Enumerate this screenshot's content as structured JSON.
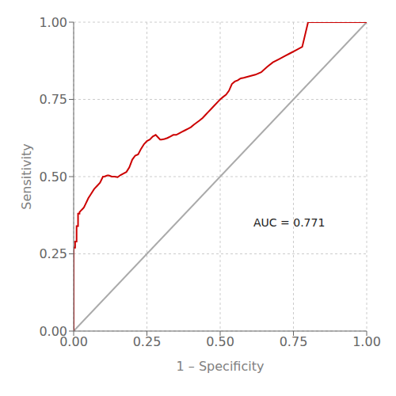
{
  "chart_data": {
    "type": "line",
    "title": "",
    "xlabel": "1 – Specificity",
    "ylabel": "Sensitivity",
    "grid": true,
    "xlim": [
      0.0,
      1.0
    ],
    "ylim": [
      0.0,
      1.0
    ],
    "xticks": [
      {
        "value": 0.0,
        "label": "0.00"
      },
      0.25,
      {
        "value": 0.5,
        "label": "0.50"
      },
      0.75,
      {
        "value": 1.0,
        "label": "1.00"
      }
    ],
    "yticks": [
      {
        "value": 0.0,
        "label": "0.00"
      },
      0.25,
      {
        "value": 0.5,
        "label": "0.50"
      },
      0.75,
      {
        "value": 1.0,
        "label": "1.00"
      }
    ],
    "series": [
      {
        "color": "#aaaaaa",
        "x": [
          0,
          1
        ],
        "values": [
          0,
          1
        ]
      },
      {
        "color": "#cc0000",
        "x": [
          0.0,
          0.0,
          0.005,
          0.005,
          0.01,
          0.01,
          0.015,
          0.015,
          0.02,
          0.02,
          0.025,
          0.03,
          0.035,
          0.04,
          0.045,
          0.05,
          0.06,
          0.07,
          0.08,
          0.09,
          0.1,
          0.105,
          0.11,
          0.115,
          0.12,
          0.125,
          0.13,
          0.14,
          0.15,
          0.16,
          0.17,
          0.18,
          0.19,
          0.2,
          0.21,
          0.22,
          0.23,
          0.24,
          0.25,
          0.26,
          0.27,
          0.28,
          0.285,
          0.29,
          0.295,
          0.3,
          0.31,
          0.32,
          0.33,
          0.34,
          0.35,
          0.36,
          0.37,
          0.38,
          0.39,
          0.4,
          0.41,
          0.42,
          0.43,
          0.44,
          0.45,
          0.46,
          0.47,
          0.48,
          0.49,
          0.5,
          0.51,
          0.52,
          0.53,
          0.54,
          0.55,
          0.56,
          0.57,
          0.58,
          0.6,
          0.62,
          0.64,
          0.66,
          0.68,
          0.7,
          0.72,
          0.74,
          0.76,
          0.78,
          0.8,
          0.82,
          0.84,
          0.86,
          0.88,
          0.9,
          0.92,
          0.94,
          0.96,
          0.98,
          1.0
        ],
        "values": [
          0.0,
          0.27,
          0.27,
          0.29,
          0.29,
          0.34,
          0.34,
          0.38,
          0.38,
          0.385,
          0.39,
          0.395,
          0.4,
          0.41,
          0.42,
          0.43,
          0.445,
          0.46,
          0.47,
          0.48,
          0.5,
          0.5,
          0.502,
          0.504,
          0.504,
          0.502,
          0.5,
          0.5,
          0.498,
          0.505,
          0.51,
          0.515,
          0.53,
          0.555,
          0.568,
          0.572,
          0.59,
          0.605,
          0.615,
          0.62,
          0.63,
          0.635,
          0.63,
          0.625,
          0.62,
          0.62,
          0.622,
          0.625,
          0.63,
          0.635,
          0.635,
          0.64,
          0.645,
          0.65,
          0.655,
          0.66,
          0.668,
          0.675,
          0.682,
          0.69,
          0.7,
          0.71,
          0.72,
          0.73,
          0.74,
          0.75,
          0.758,
          0.765,
          0.778,
          0.8,
          0.808,
          0.812,
          0.818,
          0.82,
          0.825,
          0.83,
          0.838,
          0.855,
          0.87,
          0.88,
          0.89,
          0.9,
          0.91,
          0.92,
          1.0,
          1.0,
          1.0,
          1.0,
          1.0,
          1.0,
          1.0,
          1.0,
          1.0,
          1.0,
          1.0
        ]
      }
    ],
    "annotations": [
      {
        "text": "AUC = 0.771",
        "x": 0.6,
        "y": 0.35
      }
    ]
  }
}
